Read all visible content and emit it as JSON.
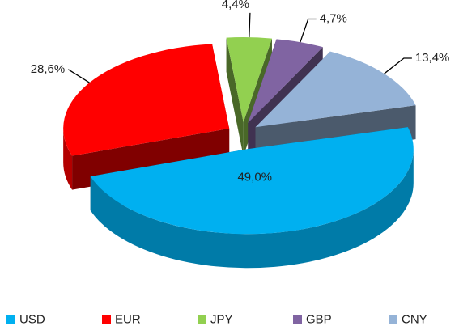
{
  "chart_data": {
    "type": "pie3d",
    "categories": [
      "USD",
      "EUR",
      "JPY",
      "GBP",
      "CNY"
    ],
    "values": [
      49.0,
      28.6,
      4.4,
      4.7,
      13.4
    ],
    "value_labels": [
      "49,0%",
      "28,6%",
      "4,4%",
      "4,7%",
      "13,4%"
    ],
    "colors": [
      "#00b0f0",
      "#ff0000",
      "#92d050",
      "#8064a2",
      "#95b3d7"
    ],
    "legend": "bottom"
  }
}
